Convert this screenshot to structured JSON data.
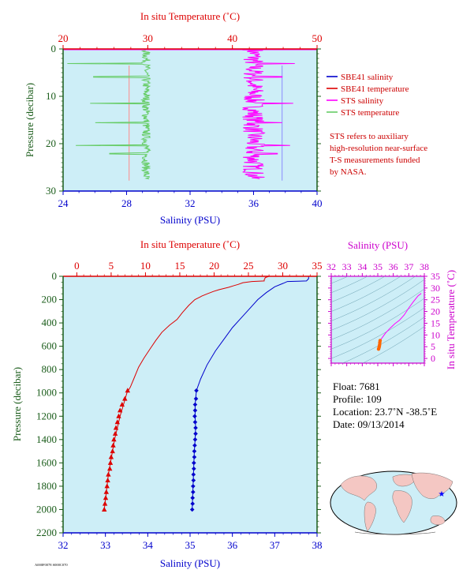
{
  "colors": {
    "background": "#cdeef7",
    "salinity": "#0000cc",
    "temperature": "#dd0000",
    "sts_salinity": "#ff00ff",
    "sts_temperature": "#66cc66",
    "depth_axis": "#1a5c1a",
    "ts_axis": "#cc00cc"
  },
  "legend": {
    "items": [
      {
        "label": "SBE41 salinity",
        "color": "#0000cc"
      },
      {
        "label": "SBE41 temperature",
        "color": "#dd0000"
      },
      {
        "label": "STS salinity",
        "color": "#ff00ff"
      },
      {
        "label": "STS temperature",
        "color": "#66cc66"
      }
    ],
    "note_lines": [
      "STS refers to auxiliary",
      "high-resolution near-surface",
      "T-S measurements funded",
      "by NASA."
    ]
  },
  "info": {
    "float": "Float:  7681",
    "profile": "Profile:  109",
    "location": "Location:  23.7˚N  -38.5˚E",
    "date": "Date:  09/13/2014"
  },
  "footer_code": "A000F0078 S000C070",
  "chart_data": [
    {
      "type": "line",
      "id": "surface",
      "top_axis_label": "In situ Temperature (˚C)",
      "bottom_axis_label": "Salinity (PSU)",
      "left_axis_label": "Pressure (decibar)",
      "temp_range": [
        20,
        50
      ],
      "temp_ticks": [
        "20",
        "30",
        "40",
        "50"
      ],
      "sal_range": [
        24,
        40
      ],
      "sal_ticks": [
        "24",
        "28",
        "32",
        "36",
        "40"
      ],
      "pressure_range": [
        0,
        30
      ],
      "pressure_ticks": [
        "0",
        "10",
        "20",
        "30"
      ],
      "series": [
        {
          "name": "SBE41 salinity",
          "value": 37.8,
          "p_from": 3.5,
          "p_to": 27.8
        },
        {
          "name": "SBE41 temperature",
          "value": 27.8,
          "p_from": 3.5,
          "p_to": 27.8
        },
        {
          "name": "STS salinity",
          "mean": 36.0,
          "amp": 0.7,
          "p_from": 0.2,
          "p_to": 27.5,
          "spikes": [
            {
              "p": 3.1,
              "v": 38.6
            },
            {
              "p": 5.9,
              "v": 37.8
            },
            {
              "p": 11.5,
              "v": 38.5
            },
            {
              "p": 15.6,
              "v": 37.8
            },
            {
              "p": 20.4,
              "v": 38.3
            },
            {
              "p": 22.1,
              "v": 37.5
            }
          ]
        },
        {
          "name": "STS temperature",
          "mean": 29.8,
          "amp": 0.5,
          "p_from": 0.2,
          "p_to": 27.5,
          "spikes": [
            {
              "p": 3.1,
              "v": 20.5
            },
            {
              "p": 5.9,
              "v": 23.6
            },
            {
              "p": 11.5,
              "v": 23.2
            },
            {
              "p": 15.6,
              "v": 23.8
            },
            {
              "p": 20.4,
              "v": 21.5
            },
            {
              "p": 22.1,
              "v": 25.5
            }
          ]
        }
      ]
    },
    {
      "type": "line",
      "id": "full_profile",
      "top_axis_label": "In situ Temperature (˚C)",
      "bottom_axis_label": "Salinity (PSU)",
      "left_axis_label": "Pressure (decibar)",
      "temp_range": [
        -2,
        35
      ],
      "temp_ticks": [
        "0",
        "5",
        "10",
        "15",
        "20",
        "25",
        "30",
        "35"
      ],
      "sal_range": [
        32,
        38
      ],
      "sal_ticks": [
        "32",
        "33",
        "34",
        "35",
        "36",
        "37",
        "38"
      ],
      "pressure_range": [
        0,
        2200
      ],
      "pressure_ticks": [
        "0",
        "200",
        "400",
        "600",
        "800",
        "1000",
        "1200",
        "1400",
        "1600",
        "1800",
        "2000",
        "2200"
      ],
      "temperature": [
        [
          28.0,
          0
        ],
        [
          27.8,
          5
        ],
        [
          27.5,
          10
        ],
        [
          27.4,
          15
        ],
        [
          27.4,
          20
        ],
        [
          27.3,
          30
        ],
        [
          27.3,
          40
        ],
        [
          25.5,
          45
        ],
        [
          24.2,
          55
        ],
        [
          23.5,
          70
        ],
        [
          22.9,
          80
        ],
        [
          22.1,
          95
        ],
        [
          21.4,
          105
        ],
        [
          20.7,
          115
        ],
        [
          19.9,
          130
        ],
        [
          19.0,
          150
        ],
        [
          18.2,
          170
        ],
        [
          17.2,
          200
        ],
        [
          16.3,
          250
        ],
        [
          15.4,
          310
        ],
        [
          14.6,
          370
        ],
        [
          13.5,
          420
        ],
        [
          12.4,
          480
        ],
        [
          11.5,
          550
        ],
        [
          10.7,
          620
        ],
        [
          9.8,
          700
        ],
        [
          9.0,
          780
        ],
        [
          8.3,
          880
        ],
        [
          7.8,
          950
        ],
        [
          7.3,
          1000
        ],
        [
          6.8,
          1100
        ],
        [
          6.3,
          1200
        ],
        [
          5.9,
          1300
        ],
        [
          5.5,
          1400
        ],
        [
          5.2,
          1500
        ],
        [
          4.9,
          1600
        ],
        [
          4.6,
          1700
        ],
        [
          4.4,
          1800
        ],
        [
          4.2,
          1900
        ],
        [
          4.0,
          2000
        ]
      ],
      "temperature_markers": [
        [
          7.4,
          980
        ],
        [
          7.0,
          1050
        ],
        [
          6.6,
          1100
        ],
        [
          6.3,
          1150
        ],
        [
          6.1,
          1200
        ],
        [
          5.9,
          1250
        ],
        [
          5.7,
          1300
        ],
        [
          5.6,
          1350
        ],
        [
          5.4,
          1400
        ],
        [
          5.3,
          1450
        ],
        [
          5.2,
          1500
        ],
        [
          5.0,
          1550
        ],
        [
          4.9,
          1600
        ],
        [
          4.8,
          1650
        ],
        [
          4.6,
          1700
        ],
        [
          4.5,
          1750
        ],
        [
          4.4,
          1800
        ],
        [
          4.3,
          1850
        ],
        [
          4.2,
          1900
        ],
        [
          4.1,
          1950
        ],
        [
          4.0,
          2000
        ]
      ],
      "salinity": [
        [
          37.8,
          0
        ],
        [
          37.8,
          20
        ],
        [
          37.75,
          40
        ],
        [
          37.3,
          45
        ],
        [
          37.2,
          60
        ],
        [
          37.0,
          90
        ],
        [
          36.8,
          140
        ],
        [
          36.6,
          200
        ],
        [
          36.4,
          280
        ],
        [
          36.2,
          360
        ],
        [
          36.0,
          440
        ],
        [
          35.8,
          540
        ],
        [
          35.6,
          640
        ],
        [
          35.4,
          760
        ],
        [
          35.25,
          880
        ],
        [
          35.15,
          980
        ],
        [
          35.12,
          1100
        ],
        [
          35.12,
          1200
        ],
        [
          35.13,
          1300
        ],
        [
          35.12,
          1400
        ],
        [
          35.1,
          1500
        ],
        [
          35.09,
          1600
        ],
        [
          35.08,
          1700
        ],
        [
          35.07,
          1800
        ],
        [
          35.06,
          1900
        ],
        [
          35.05,
          2000
        ]
      ],
      "salinity_markers": [
        [
          35.15,
          980
        ],
        [
          35.14,
          1050
        ],
        [
          35.12,
          1100
        ],
        [
          35.12,
          1150
        ],
        [
          35.11,
          1200
        ],
        [
          35.12,
          1250
        ],
        [
          35.13,
          1300
        ],
        [
          35.13,
          1350
        ],
        [
          35.12,
          1400
        ],
        [
          35.11,
          1450
        ],
        [
          35.1,
          1500
        ],
        [
          35.1,
          1550
        ],
        [
          35.09,
          1600
        ],
        [
          35.09,
          1650
        ],
        [
          35.08,
          1700
        ],
        [
          35.08,
          1750
        ],
        [
          35.07,
          1800
        ],
        [
          35.07,
          1850
        ],
        [
          35.06,
          1900
        ],
        [
          35.06,
          1950
        ],
        [
          35.05,
          2000
        ]
      ]
    },
    {
      "type": "scatter",
      "id": "ts_diagram",
      "top_axis_label": "Salinity (PSU)",
      "right_axis_label": "In situ Temperature (˚C)",
      "sal_range": [
        32,
        38
      ],
      "sal_ticks": [
        "32",
        "33",
        "34",
        "35",
        "36",
        "37",
        "38"
      ],
      "temp_range": [
        -2,
        35
      ],
      "temp_ticks": [
        "0",
        "5",
        "10",
        "15",
        "20",
        "25",
        "30",
        "35"
      ],
      "ts_curve": [
        [
          35.05,
          4.0
        ],
        [
          35.08,
          4.6
        ],
        [
          35.1,
          5.2
        ],
        [
          35.12,
          5.9
        ],
        [
          35.13,
          6.8
        ],
        [
          35.15,
          7.6
        ],
        [
          35.3,
          9.0
        ],
        [
          35.5,
          10.8
        ],
        [
          35.8,
          12.9
        ],
        [
          36.1,
          14.8
        ],
        [
          36.4,
          16.3
        ],
        [
          36.7,
          18.5
        ],
        [
          37.0,
          21.5
        ],
        [
          37.3,
          24.2
        ],
        [
          37.6,
          26.7
        ],
        [
          37.8,
          27.7
        ]
      ]
    }
  ]
}
